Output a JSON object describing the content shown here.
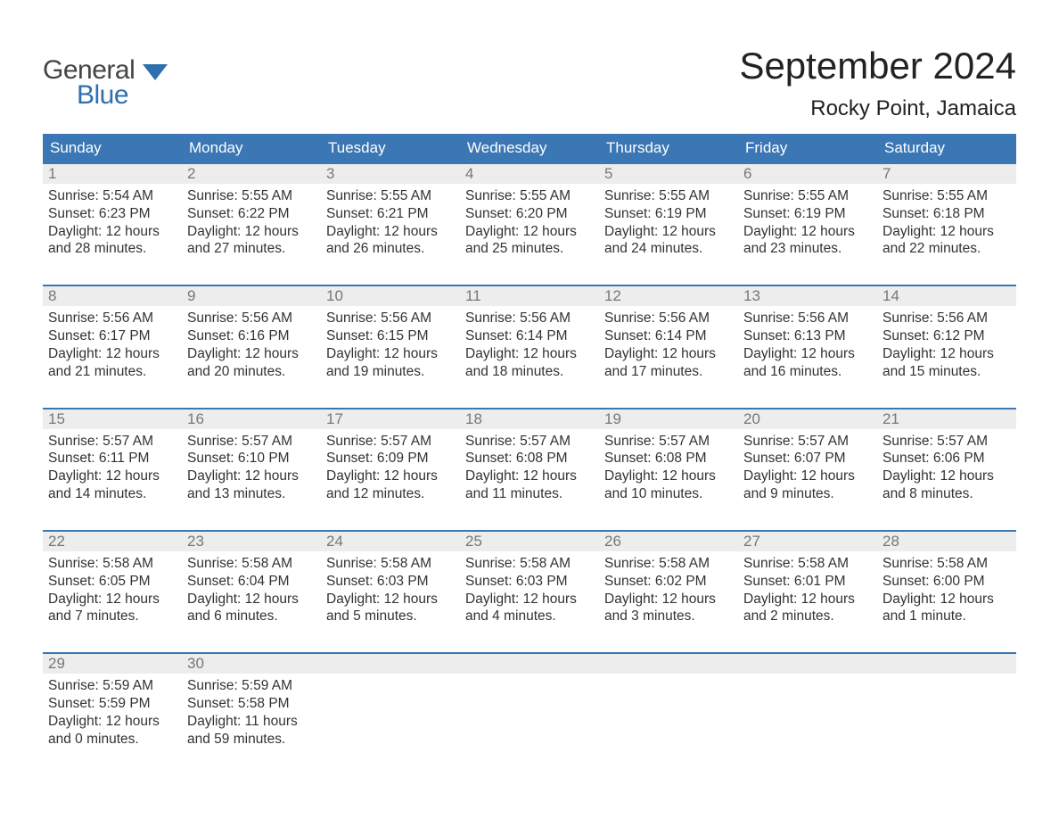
{
  "brand": {
    "word1": "General",
    "word2": "Blue",
    "word1_color": "#444444",
    "word2_color": "#2f6fad",
    "flag_color": "#2f6fad"
  },
  "title": "September 2024",
  "location": "Rocky Point, Jamaica",
  "colors": {
    "header_bg": "#3a77b4",
    "header_text": "#ffffff",
    "daynum_bg": "#ededed",
    "daynum_text": "#777777",
    "week_border": "#3a77b4",
    "body_text": "#333333",
    "page_bg": "#ffffff"
  },
  "typography": {
    "title_fontsize": 42,
    "location_fontsize": 24,
    "dayheader_fontsize": 17,
    "daynum_fontsize": 17,
    "cell_fontsize": 15.5,
    "font_family": "Arial"
  },
  "day_names": [
    "Sunday",
    "Monday",
    "Tuesday",
    "Wednesday",
    "Thursday",
    "Friday",
    "Saturday"
  ],
  "weeks": [
    [
      {
        "n": "1",
        "sunrise": "Sunrise: 5:54 AM",
        "sunset": "Sunset: 6:23 PM",
        "day1": "Daylight: 12 hours",
        "day2": "and 28 minutes."
      },
      {
        "n": "2",
        "sunrise": "Sunrise: 5:55 AM",
        "sunset": "Sunset: 6:22 PM",
        "day1": "Daylight: 12 hours",
        "day2": "and 27 minutes."
      },
      {
        "n": "3",
        "sunrise": "Sunrise: 5:55 AM",
        "sunset": "Sunset: 6:21 PM",
        "day1": "Daylight: 12 hours",
        "day2": "and 26 minutes."
      },
      {
        "n": "4",
        "sunrise": "Sunrise: 5:55 AM",
        "sunset": "Sunset: 6:20 PM",
        "day1": "Daylight: 12 hours",
        "day2": "and 25 minutes."
      },
      {
        "n": "5",
        "sunrise": "Sunrise: 5:55 AM",
        "sunset": "Sunset: 6:19 PM",
        "day1": "Daylight: 12 hours",
        "day2": "and 24 minutes."
      },
      {
        "n": "6",
        "sunrise": "Sunrise: 5:55 AM",
        "sunset": "Sunset: 6:19 PM",
        "day1": "Daylight: 12 hours",
        "day2": "and 23 minutes."
      },
      {
        "n": "7",
        "sunrise": "Sunrise: 5:55 AM",
        "sunset": "Sunset: 6:18 PM",
        "day1": "Daylight: 12 hours",
        "day2": "and 22 minutes."
      }
    ],
    [
      {
        "n": "8",
        "sunrise": "Sunrise: 5:56 AM",
        "sunset": "Sunset: 6:17 PM",
        "day1": "Daylight: 12 hours",
        "day2": "and 21 minutes."
      },
      {
        "n": "9",
        "sunrise": "Sunrise: 5:56 AM",
        "sunset": "Sunset: 6:16 PM",
        "day1": "Daylight: 12 hours",
        "day2": "and 20 minutes."
      },
      {
        "n": "10",
        "sunrise": "Sunrise: 5:56 AM",
        "sunset": "Sunset: 6:15 PM",
        "day1": "Daylight: 12 hours",
        "day2": "and 19 minutes."
      },
      {
        "n": "11",
        "sunrise": "Sunrise: 5:56 AM",
        "sunset": "Sunset: 6:14 PM",
        "day1": "Daylight: 12 hours",
        "day2": "and 18 minutes."
      },
      {
        "n": "12",
        "sunrise": "Sunrise: 5:56 AM",
        "sunset": "Sunset: 6:14 PM",
        "day1": "Daylight: 12 hours",
        "day2": "and 17 minutes."
      },
      {
        "n": "13",
        "sunrise": "Sunrise: 5:56 AM",
        "sunset": "Sunset: 6:13 PM",
        "day1": "Daylight: 12 hours",
        "day2": "and 16 minutes."
      },
      {
        "n": "14",
        "sunrise": "Sunrise: 5:56 AM",
        "sunset": "Sunset: 6:12 PM",
        "day1": "Daylight: 12 hours",
        "day2": "and 15 minutes."
      }
    ],
    [
      {
        "n": "15",
        "sunrise": "Sunrise: 5:57 AM",
        "sunset": "Sunset: 6:11 PM",
        "day1": "Daylight: 12 hours",
        "day2": "and 14 minutes."
      },
      {
        "n": "16",
        "sunrise": "Sunrise: 5:57 AM",
        "sunset": "Sunset: 6:10 PM",
        "day1": "Daylight: 12 hours",
        "day2": "and 13 minutes."
      },
      {
        "n": "17",
        "sunrise": "Sunrise: 5:57 AM",
        "sunset": "Sunset: 6:09 PM",
        "day1": "Daylight: 12 hours",
        "day2": "and 12 minutes."
      },
      {
        "n": "18",
        "sunrise": "Sunrise: 5:57 AM",
        "sunset": "Sunset: 6:08 PM",
        "day1": "Daylight: 12 hours",
        "day2": "and 11 minutes."
      },
      {
        "n": "19",
        "sunrise": "Sunrise: 5:57 AM",
        "sunset": "Sunset: 6:08 PM",
        "day1": "Daylight: 12 hours",
        "day2": "and 10 minutes."
      },
      {
        "n": "20",
        "sunrise": "Sunrise: 5:57 AM",
        "sunset": "Sunset: 6:07 PM",
        "day1": "Daylight: 12 hours",
        "day2": "and 9 minutes."
      },
      {
        "n": "21",
        "sunrise": "Sunrise: 5:57 AM",
        "sunset": "Sunset: 6:06 PM",
        "day1": "Daylight: 12 hours",
        "day2": "and 8 minutes."
      }
    ],
    [
      {
        "n": "22",
        "sunrise": "Sunrise: 5:58 AM",
        "sunset": "Sunset: 6:05 PM",
        "day1": "Daylight: 12 hours",
        "day2": "and 7 minutes."
      },
      {
        "n": "23",
        "sunrise": "Sunrise: 5:58 AM",
        "sunset": "Sunset: 6:04 PM",
        "day1": "Daylight: 12 hours",
        "day2": "and 6 minutes."
      },
      {
        "n": "24",
        "sunrise": "Sunrise: 5:58 AM",
        "sunset": "Sunset: 6:03 PM",
        "day1": "Daylight: 12 hours",
        "day2": "and 5 minutes."
      },
      {
        "n": "25",
        "sunrise": "Sunrise: 5:58 AM",
        "sunset": "Sunset: 6:03 PM",
        "day1": "Daylight: 12 hours",
        "day2": "and 4 minutes."
      },
      {
        "n": "26",
        "sunrise": "Sunrise: 5:58 AM",
        "sunset": "Sunset: 6:02 PM",
        "day1": "Daylight: 12 hours",
        "day2": "and 3 minutes."
      },
      {
        "n": "27",
        "sunrise": "Sunrise: 5:58 AM",
        "sunset": "Sunset: 6:01 PM",
        "day1": "Daylight: 12 hours",
        "day2": "and 2 minutes."
      },
      {
        "n": "28",
        "sunrise": "Sunrise: 5:58 AM",
        "sunset": "Sunset: 6:00 PM",
        "day1": "Daylight: 12 hours",
        "day2": "and 1 minute."
      }
    ],
    [
      {
        "n": "29",
        "sunrise": "Sunrise: 5:59 AM",
        "sunset": "Sunset: 5:59 PM",
        "day1": "Daylight: 12 hours",
        "day2": "and 0 minutes."
      },
      {
        "n": "30",
        "sunrise": "Sunrise: 5:59 AM",
        "sunset": "Sunset: 5:58 PM",
        "day1": "Daylight: 11 hours",
        "day2": "and 59 minutes."
      },
      {
        "empty": true
      },
      {
        "empty": true
      },
      {
        "empty": true
      },
      {
        "empty": true
      },
      {
        "empty": true
      }
    ]
  ]
}
